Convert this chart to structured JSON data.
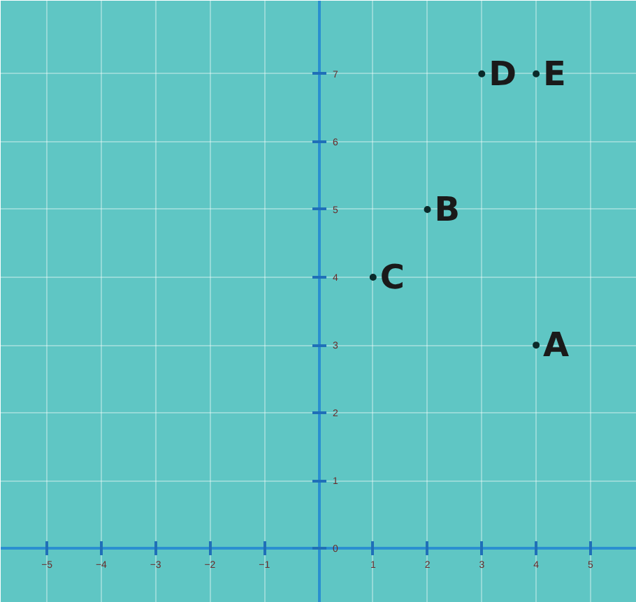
{
  "chart_data": {
    "type": "scatter",
    "x": [
      4,
      2,
      1,
      3,
      4
    ],
    "values": [
      3,
      5,
      4,
      7,
      7
    ],
    "color": "#0b2b2b",
    "marker": "circle",
    "xlim": [
      -5.85,
      5.85
    ],
    "ylim": [
      -0.8,
      8.08
    ],
    "xticks": [
      -5,
      -4,
      -3,
      -2,
      -1,
      {
        "value": 0,
        "label": null
      },
      1,
      2,
      3,
      4,
      5
    ],
    "yticks": [
      0,
      1,
      2,
      3,
      4,
      5,
      6,
      7
    ],
    "grid": true,
    "annotations": [
      {
        "text": "A",
        "x": 4,
        "y": 3
      },
      {
        "text": "B",
        "x": 2,
        "y": 5
      },
      {
        "text": "C",
        "x": 1,
        "y": 4
      },
      {
        "text": "D",
        "x": 3,
        "y": 7
      },
      {
        "text": "E",
        "x": 4,
        "y": 7
      }
    ]
  }
}
